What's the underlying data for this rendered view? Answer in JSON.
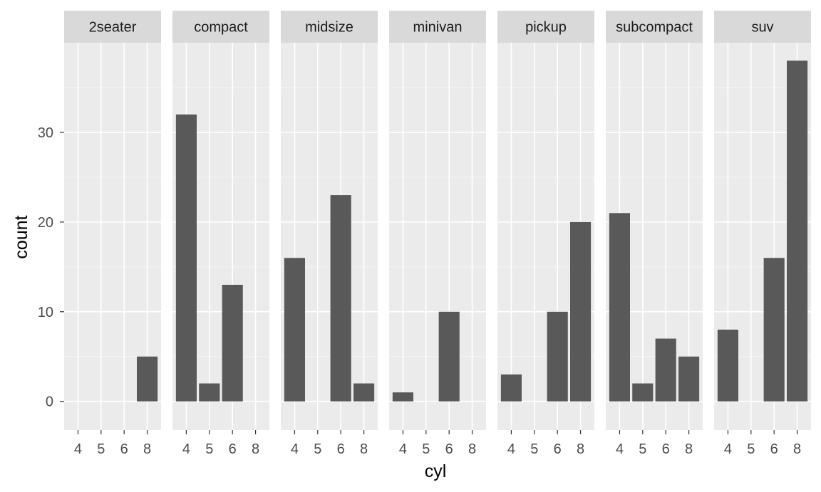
{
  "chart_data": {
    "type": "bar",
    "facet_by": "class",
    "xlabel": "cyl",
    "ylabel": "count",
    "ylim": [
      -3.2,
      40
    ],
    "y_ticks": [
      0,
      10,
      20,
      30
    ],
    "x_ticks": [
      4,
      5,
      6,
      8
    ],
    "grid": true,
    "colors": {
      "bar": "#595959",
      "panel": "#ebebeb",
      "strip": "#d9d9d9",
      "grid_major": "#ffffff",
      "grid_minor": "#f5f5f5"
    },
    "panels": [
      {
        "name": "2seater",
        "values": [
          0,
          0,
          0,
          5
        ]
      },
      {
        "name": "compact",
        "values": [
          32,
          2,
          13,
          0
        ]
      },
      {
        "name": "midsize",
        "values": [
          16,
          0,
          23,
          2
        ]
      },
      {
        "name": "minivan",
        "values": [
          1,
          0,
          10,
          0
        ]
      },
      {
        "name": "pickup",
        "values": [
          3,
          0,
          10,
          20
        ]
      },
      {
        "name": "subcompact",
        "values": [
          21,
          2,
          7,
          5
        ]
      },
      {
        "name": "suv",
        "values": [
          8,
          0,
          16,
          38
        ]
      }
    ]
  }
}
